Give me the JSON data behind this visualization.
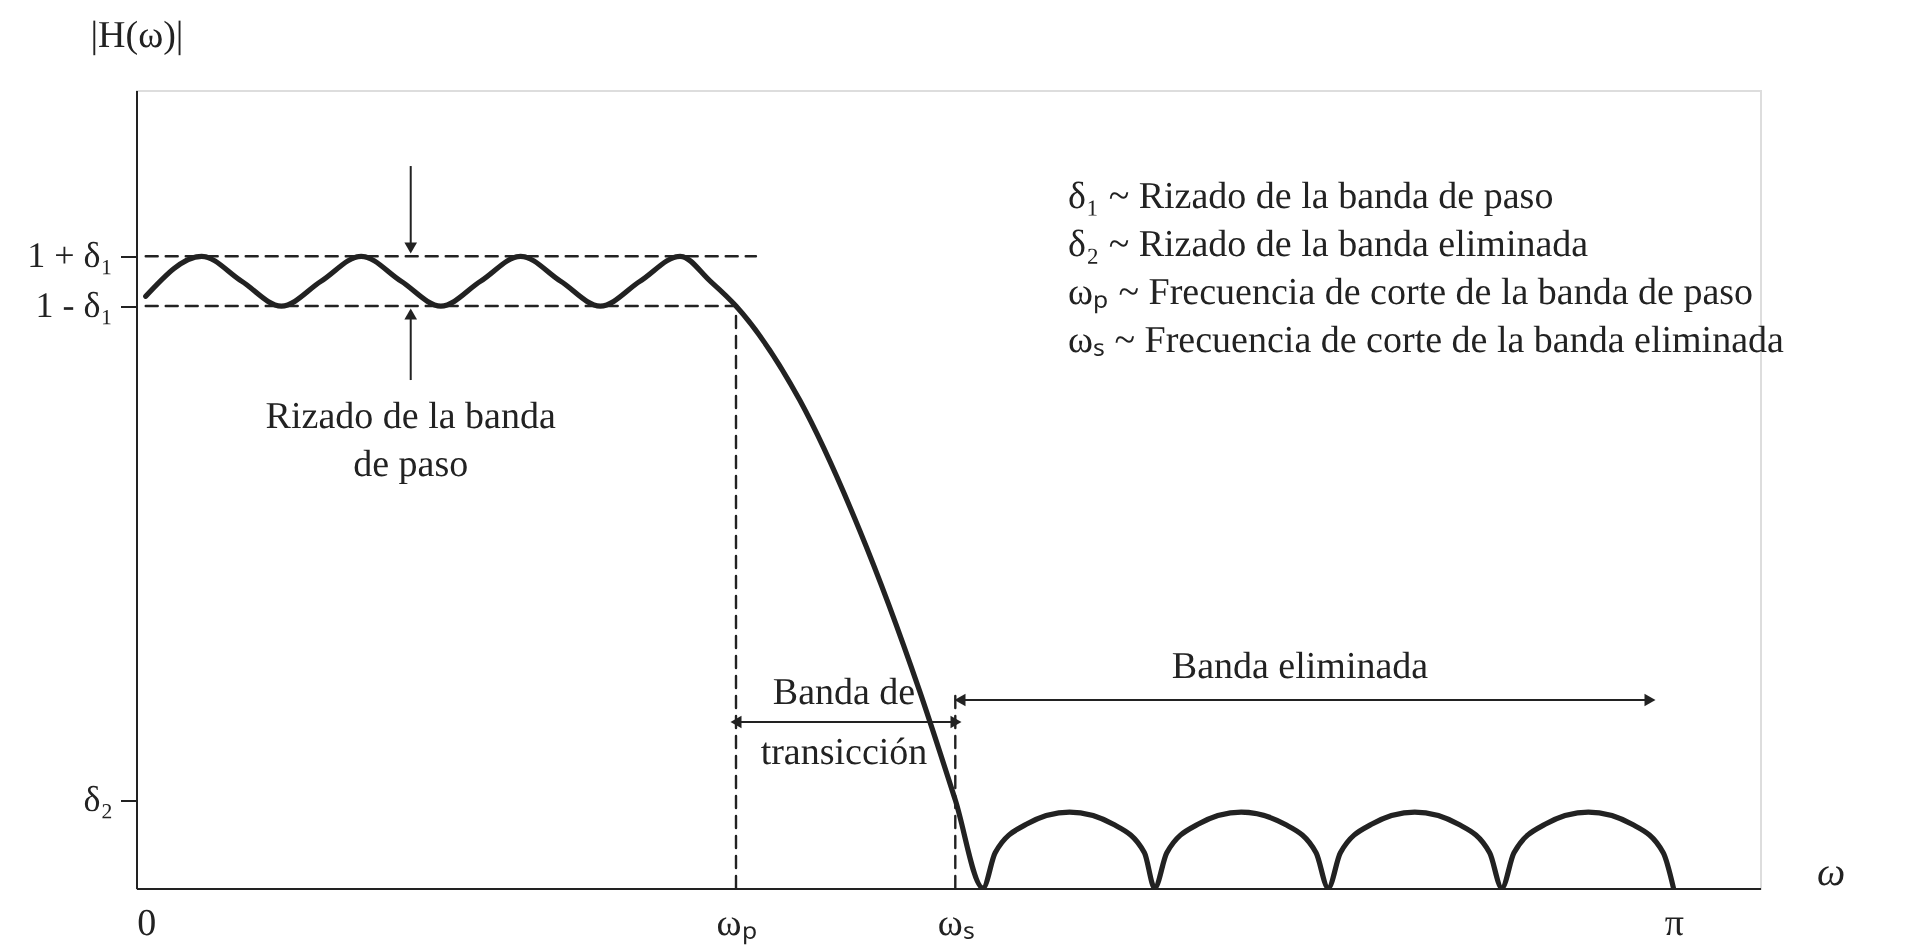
{
  "chart_data": {
    "type": "line",
    "xlabel": "ω",
    "ylabel": "|H(ω)|",
    "grid": false,
    "xlim": [
      -0.02,
      3.32
    ],
    "ylim": [
      0,
      1.315
    ],
    "xticks": [
      0,
      {
        "value": 1.214,
        "label": "ωₚ"
      },
      {
        "value": 1.665,
        "label": "ωₛ"
      },
      {
        "value": 3.142,
        "label": "π"
      }
    ],
    "yticks": [
      {
        "value": 1.041,
        "label": "1 + δ₁"
      },
      {
        "value": 0.959,
        "label": "1 - δ₁"
      },
      {
        "value": 0.145,
        "label": "δ₂"
      }
    ],
    "series": [
      {
        "color": "#222222",
        "line_style": "solid",
        "x": [
          0,
          0.115,
          0.197,
          0.279,
          0.361,
          0.443,
          0.525,
          0.607,
          0.689,
          0.771,
          0.853,
          0.935,
          1.017,
          1.099,
          1.161,
          1.214,
          1.345,
          1.468,
          1.591,
          1.665,
          1.722,
          1.747,
          1.811,
          1.9,
          1.99,
          2.054,
          2.075,
          2.1,
          2.164,
          2.253,
          2.343,
          2.407,
          2.432,
          2.457,
          2.521,
          2.61,
          2.7,
          2.764,
          2.789,
          2.814,
          2.878,
          2.967,
          3.057,
          3.121,
          3.142
        ],
        "values": [
          0.975,
          1.041,
          1.0,
          0.959,
          1.0,
          1.041,
          1.0,
          0.959,
          1.0,
          1.041,
          1.0,
          0.959,
          1.0,
          1.041,
          1.0,
          0.959,
          0.804,
          0.59,
          0.326,
          0.145,
          0,
          0.058,
          0.105,
          0.125,
          0.105,
          0.058,
          0,
          0.058,
          0.105,
          0.125,
          0.105,
          0.058,
          0,
          0.058,
          0.105,
          0.125,
          0.105,
          0.058,
          0,
          0.058,
          0.105,
          0.125,
          0.105,
          0.058,
          0
        ]
      },
      {
        "color": "#222222",
        "line_style": "dashed",
        "x": [
          0,
          1.255
        ],
        "values": [
          1.041,
          1.041
        ]
      },
      {
        "color": "#222222",
        "line_style": "dashed",
        "x": [
          0,
          1.214
        ],
        "values": [
          0.959,
          0.959
        ]
      },
      {
        "color": "#222222",
        "line_style": "dashed",
        "x": [
          1.214,
          1.214
        ],
        "values": [
          0,
          0.959
        ]
      },
      {
        "color": "#222222",
        "line_style": "dashed",
        "x": [
          1.665,
          1.665
        ],
        "values": [
          0,
          0.326
        ]
      }
    ],
    "annotations": [
      {
        "text": "Rizado de la banda\nde paso",
        "x": 0.545,
        "y": 0.959
      },
      "Banda de\ntransicción",
      "Banda eliminada",
      "δ₁ ~ Rizado de la banda de paso",
      "δ₂ ~ Rizado de la banda eliminada",
      "ωₚ ~ Frecuencia de corte de la banda de paso",
      "ωₛ ~ Frecuencia de corte de la banda eliminada"
    ]
  }
}
